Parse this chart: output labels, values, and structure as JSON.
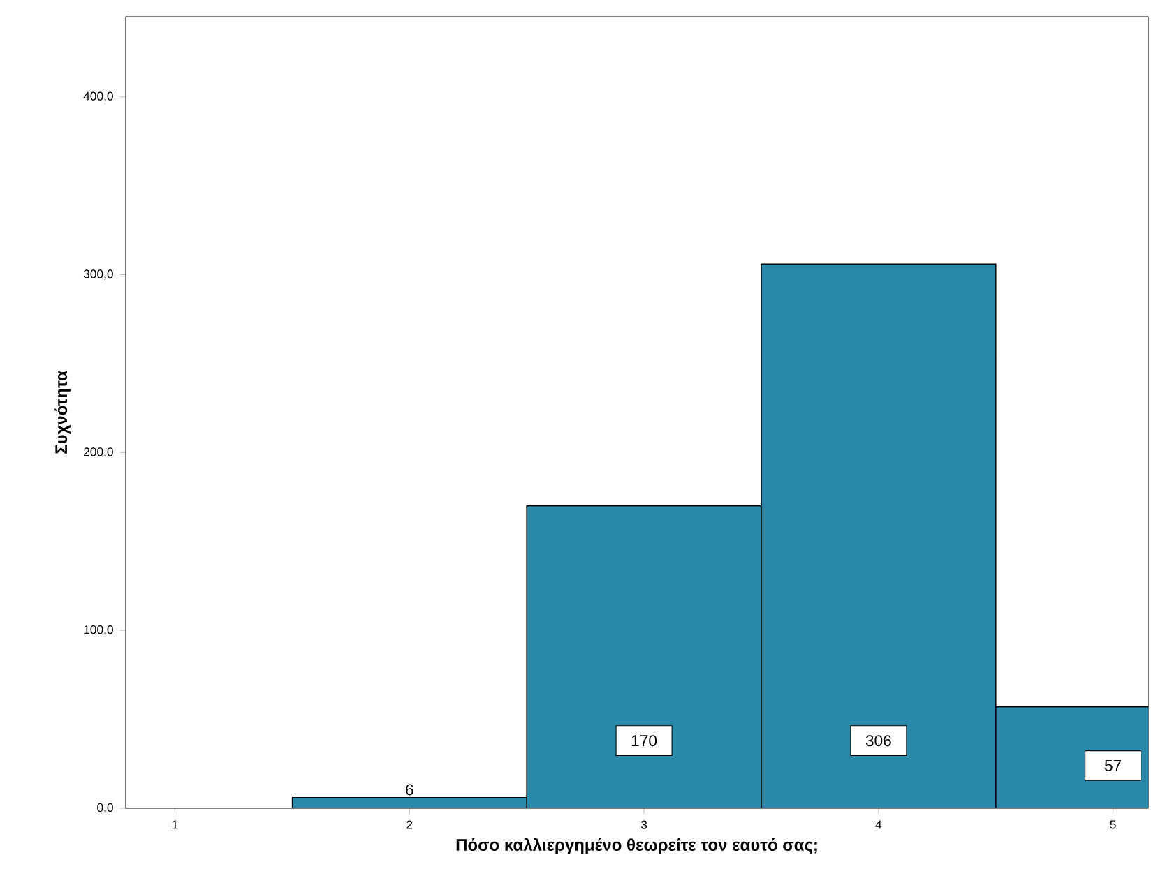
{
  "chart_data": {
    "type": "bar",
    "xlabel": "Πόσο καλλιεργημένο θεωρείτε τον εαυτό σας;",
    "ylabel": "Συχνότητα",
    "categories": [
      "1",
      "2",
      "3",
      "4",
      "5"
    ],
    "values": [
      null,
      6,
      170,
      306,
      57
    ],
    "value_labels": [
      null,
      "6",
      "170",
      "306",
      "57"
    ],
    "color": "#2a89a8",
    "ylim": [
      0,
      445
    ],
    "yticks": [
      {
        "value": 0,
        "label": "0,0"
      },
      {
        "value": 100,
        "label": "100,0"
      },
      {
        "value": 200,
        "label": "200,0"
      },
      {
        "value": 300,
        "label": "300,0"
      },
      {
        "value": 400,
        "label": "400,0"
      }
    ],
    "grid": false
  }
}
